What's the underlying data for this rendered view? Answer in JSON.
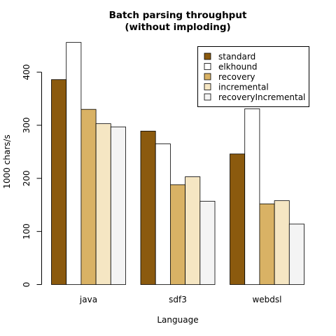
{
  "chart_data": {
    "type": "bar",
    "title": [
      "Batch parsing throughput",
      "(without imploding)"
    ],
    "xlabel": "Language",
    "ylabel": "1000 chars/s",
    "categories": [
      "java",
      "sdf3",
      "webdsl"
    ],
    "ylim": [
      0,
      460
    ],
    "yticks": [
      0,
      100,
      200,
      300,
      400
    ],
    "grid": false,
    "legend_position": "top-right",
    "series": [
      {
        "name": "standard",
        "color": "#8B5A0E",
        "values": [
          386,
          289,
          246
        ]
      },
      {
        "name": "elkhound",
        "color": "#FFFFFF",
        "values": [
          456,
          265,
          331
        ]
      },
      {
        "name": "recovery",
        "color": "#D9B265",
        "values": [
          330,
          188,
          152
        ]
      },
      {
        "name": "incremental",
        "color": "#F5E6C3",
        "values": [
          303,
          203,
          158
        ]
      },
      {
        "name": "recoveryIncremental",
        "color": "#F4F4F4",
        "values": [
          297,
          157,
          114
        ]
      }
    ]
  }
}
